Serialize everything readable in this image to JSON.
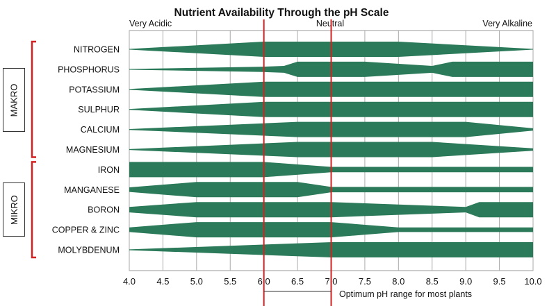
{
  "chart_data": {
    "type": "area",
    "title": "Nutrient Availability Through the pH Scale",
    "scale_labels": {
      "left": "Very Acidic",
      "center": "Neutral",
      "right": "Very Alkaline"
    },
    "xlabel": "Optimum pH range for most plants",
    "xlim": [
      4.0,
      10.0
    ],
    "x_ticks": [
      "4.0",
      "4.5",
      "5.0",
      "5.5",
      "6.0",
      "6.5",
      "7.0",
      "7.5",
      "8.0",
      "8.5",
      "9.0",
      "9.5",
      "10.0"
    ],
    "optimum_range": [
      6.0,
      7.0
    ],
    "band_color": "#2b7a5a",
    "marker_color": "#d42020",
    "groups": [
      {
        "label": "MAKRO",
        "rows": [
          0,
          5
        ]
      },
      {
        "label": "MIKRO",
        "rows": [
          6,
          10
        ]
      }
    ],
    "series": [
      {
        "name": "NITROGEN",
        "profile": [
          [
            4.0,
            0.05
          ],
          [
            6.0,
            1.0
          ],
          [
            8.0,
            1.0
          ],
          [
            10.0,
            0.05
          ]
        ]
      },
      {
        "name": "PHOSPHORUS",
        "profile": [
          [
            4.0,
            0.05
          ],
          [
            6.0,
            0.35
          ],
          [
            6.3,
            0.45
          ],
          [
            6.5,
            1.0
          ],
          [
            7.5,
            1.0
          ],
          [
            8.5,
            0.45
          ],
          [
            8.8,
            1.0
          ],
          [
            10.0,
            1.0
          ]
        ]
      },
      {
        "name": "POTASSIUM",
        "profile": [
          [
            4.0,
            0.05
          ],
          [
            6.0,
            1.0
          ],
          [
            10.0,
            1.0
          ]
        ]
      },
      {
        "name": "SULPHUR",
        "profile": [
          [
            4.0,
            0.05
          ],
          [
            6.0,
            1.0
          ],
          [
            10.0,
            1.0
          ]
        ]
      },
      {
        "name": "CALCIUM",
        "profile": [
          [
            4.0,
            0.05
          ],
          [
            6.5,
            1.0
          ],
          [
            9.0,
            1.0
          ],
          [
            10.0,
            0.15
          ]
        ]
      },
      {
        "name": "MAGNESIUM",
        "profile": [
          [
            4.0,
            0.05
          ],
          [
            6.5,
            1.0
          ],
          [
            8.5,
            1.0
          ],
          [
            10.0,
            0.15
          ]
        ]
      },
      {
        "name": "IRON",
        "profile": [
          [
            4.0,
            1.0
          ],
          [
            6.0,
            1.0
          ],
          [
            7.0,
            0.35
          ],
          [
            10.0,
            0.35
          ]
        ]
      },
      {
        "name": "MANGANESE",
        "profile": [
          [
            4.0,
            0.3
          ],
          [
            5.0,
            1.0
          ],
          [
            6.5,
            1.0
          ],
          [
            7.0,
            0.35
          ],
          [
            10.0,
            0.35
          ]
        ]
      },
      {
        "name": "BORON",
        "profile": [
          [
            4.0,
            0.35
          ],
          [
            5.0,
            1.0
          ],
          [
            7.0,
            1.0
          ],
          [
            9.0,
            0.35
          ],
          [
            9.2,
            1.0
          ],
          [
            10.0,
            1.0
          ]
        ]
      },
      {
        "name": "COPPER & ZINC",
        "profile": [
          [
            4.0,
            0.3
          ],
          [
            5.0,
            1.0
          ],
          [
            7.0,
            1.0
          ],
          [
            8.0,
            0.3
          ],
          [
            10.0,
            0.3
          ]
        ]
      },
      {
        "name": "MOLYBDENUM",
        "profile": [
          [
            4.0,
            0.05
          ],
          [
            7.0,
            1.0
          ],
          [
            10.0,
            1.0
          ]
        ]
      }
    ]
  }
}
